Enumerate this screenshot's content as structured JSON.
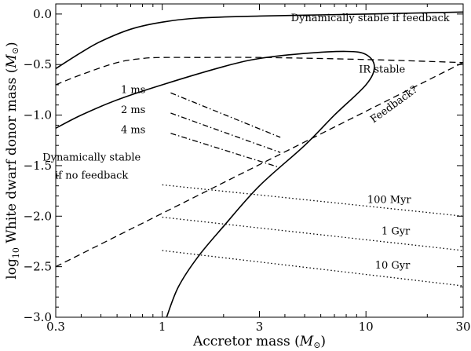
{
  "chart_data": {
    "type": "line",
    "title": "",
    "xlabel": "Accretor mass (M⊙)",
    "ylabel": "log10 White dwarf donor mass (M⊙)",
    "xscale": "log",
    "xlim": [
      0.3,
      30
    ],
    "ylim": [
      -3.0,
      0.1
    ],
    "xticks": [
      {
        "value": 0.3,
        "label": "0.3"
      },
      {
        "value": 1,
        "label": "1"
      },
      {
        "value": 3,
        "label": "3"
      },
      {
        "value": 10,
        "label": "10"
      },
      {
        "value": 30,
        "label": "30"
      }
    ],
    "yticks": [
      {
        "value": 0.0,
        "label": "0.0"
      },
      {
        "value": -0.5,
        "label": "−0.5"
      },
      {
        "value": -1.0,
        "label": "−1.0"
      },
      {
        "value": -1.5,
        "label": "−1.5"
      },
      {
        "value": -2.0,
        "label": "−2.0"
      },
      {
        "value": -2.5,
        "label": "−2.5"
      },
      {
        "value": -3.0,
        "label": "−3.0"
      }
    ],
    "grid": false,
    "legend": "none",
    "series": [
      {
        "style": "solid",
        "points": [
          [
            0.3,
            -0.54
          ],
          [
            0.4,
            -0.38
          ],
          [
            0.5,
            -0.27
          ],
          [
            0.7,
            -0.15
          ],
          [
            1,
            -0.08
          ],
          [
            1.5,
            -0.04
          ],
          [
            3,
            -0.02
          ],
          [
            10,
            0.0
          ],
          [
            30,
            0.02
          ]
        ]
      },
      {
        "style": "dashed",
        "points": [
          [
            0.3,
            -0.7
          ],
          [
            0.4,
            -0.6
          ],
          [
            0.6,
            -0.48
          ],
          [
            0.8,
            -0.44
          ],
          [
            1,
            -0.43
          ],
          [
            1.5,
            -0.43
          ],
          [
            3,
            -0.43
          ],
          [
            10,
            -0.45
          ],
          [
            30,
            -0.48
          ]
        ]
      },
      {
        "style": "solid",
        "points": [
          [
            0.3,
            -1.13
          ],
          [
            0.4,
            -1.0
          ],
          [
            0.6,
            -0.85
          ],
          [
            1,
            -0.7
          ],
          [
            2,
            -0.52
          ],
          [
            3,
            -0.44
          ],
          [
            5,
            -0.39
          ],
          [
            8,
            -0.37
          ],
          [
            10,
            -0.4
          ],
          [
            11,
            -0.52
          ],
          [
            10,
            -0.7
          ],
          [
            7,
            -1.0
          ],
          [
            5,
            -1.3
          ],
          [
            3,
            -1.7
          ],
          [
            2,
            -2.1
          ],
          [
            1.5,
            -2.4
          ],
          [
            1.2,
            -2.7
          ],
          [
            1.05,
            -3.0
          ]
        ]
      },
      {
        "style": "dashed",
        "points": [
          [
            0.3,
            -2.5
          ],
          [
            30,
            -0.48
          ]
        ]
      },
      {
        "style": "dashdot",
        "points": [
          [
            1.1,
            -0.78
          ],
          [
            3.8,
            -1.22
          ]
        ]
      },
      {
        "style": "dashdot",
        "points": [
          [
            1.1,
            -0.98
          ],
          [
            3.8,
            -1.37
          ]
        ]
      },
      {
        "style": "dashdot",
        "points": [
          [
            1.1,
            -1.18
          ],
          [
            3.8,
            -1.52
          ]
        ]
      },
      {
        "style": "dotted",
        "points": [
          [
            1,
            -1.69
          ],
          [
            30,
            -2.0
          ]
        ]
      },
      {
        "style": "dotted",
        "points": [
          [
            1,
            -2.01
          ],
          [
            30,
            -2.34
          ]
        ]
      },
      {
        "style": "dotted",
        "points": [
          [
            1,
            -2.34
          ],
          [
            30,
            -2.69
          ]
        ]
      }
    ],
    "annotations": [
      {
        "text": "Dynamically stable if feedback",
        "x": 10.5,
        "y": -0.07
      },
      {
        "text": "IR stable",
        "x": 12,
        "y": -0.58
      },
      {
        "text": "Feedback?",
        "x": 14,
        "y": -0.92,
        "rotate": -36
      },
      {
        "text": "1 ms",
        "x": 0.72,
        "y": -0.78
      },
      {
        "text": "2 ms",
        "x": 0.72,
        "y": -0.98
      },
      {
        "text": "4 ms",
        "x": 0.72,
        "y": -1.18
      },
      {
        "text": "Dynamically stable",
        "x": 0.45,
        "y": -1.45
      },
      {
        "text": "if no feedback",
        "x": 0.45,
        "y": -1.63
      },
      {
        "text": "100 Myr",
        "x": 13,
        "y": -1.87
      },
      {
        "text": "1 Gyr",
        "x": 14,
        "y": -2.18
      },
      {
        "text": "10 Gyr",
        "x": 13.5,
        "y": -2.52
      }
    ]
  }
}
